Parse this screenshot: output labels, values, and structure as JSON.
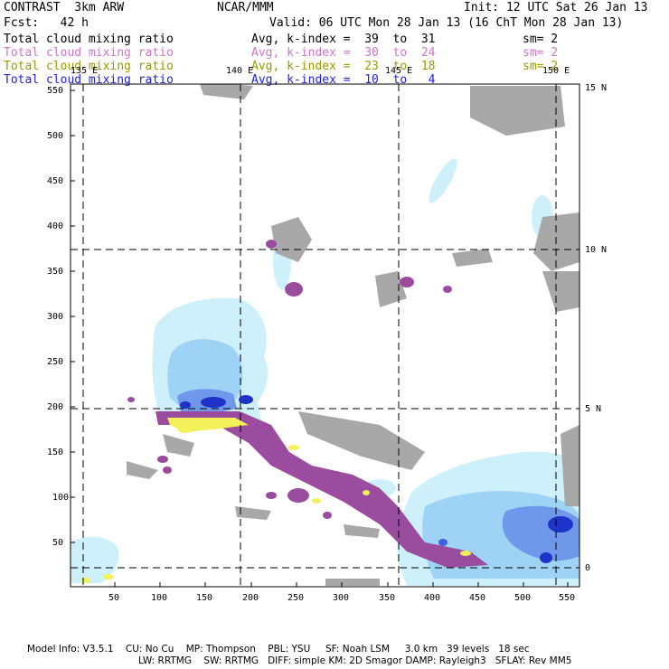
{
  "header": {
    "model": "CONTRAST  3km ARW",
    "center": "NCAR/MMM",
    "init": "Init: 12 UTC Sat 26 Jan 13",
    "fcst": "Fcst:   42 h",
    "valid": "Valid: 06 UTC Mon 28 Jan 13 (16 ChT Mon 28 Jan 13)"
  },
  "fields": [
    {
      "name": "Total cloud mixing ratio",
      "avg": "Avg, k-index =  39  to  31",
      "sm": "sm= 2",
      "color": "#000000"
    },
    {
      "name": "Total cloud mixing ratio",
      "avg": "Avg, k-index =  30  to  24",
      "sm": "sm= 2",
      "color": "#cc77cc"
    },
    {
      "name": "Total cloud mixing ratio",
      "avg": "Avg, k-index =  23  to  18",
      "sm": "sm= 2",
      "color": "#999900"
    },
    {
      "name": "Total cloud mixing ratio",
      "avg": "Avg, k-index =  10  to   4",
      "sm": "",
      "color": "#2222dd"
    }
  ],
  "map": {
    "lon_labels": [
      "135 E",
      "140 E",
      "145 E",
      "150 E"
    ],
    "lat_labels": [
      "15 N",
      "10 N",
      "5 N",
      "0"
    ],
    "x_ticks": [
      "50",
      "100",
      "150",
      "200",
      "250",
      "300",
      "350",
      "400",
      "450",
      "500",
      "550"
    ],
    "y_ticks": [
      "550",
      "500",
      "450",
      "400",
      "350",
      "300",
      "250",
      "200",
      "150",
      "100",
      "50"
    ],
    "colors": {
      "gray": "#a8a8a8",
      "light_blue": "#cdf0fb",
      "mid_blue": "#9fd3f5",
      "blue": "#6f97ea",
      "dark_blue": "#1f33c8",
      "purple": "#9a4c9e",
      "yellow": "#f4f05a"
    }
  },
  "footer": {
    "line1": "Model Info: V3.5.1    CU: No Cu    MP: Thompson    PBL: YSU     SF: Noah LSM     3.0 km   39 levels   18 sec",
    "line2": "LW: RRTMG    SW: RRTMG   DIFF: simple KM: 2D Smagor DAMP: Rayleigh3   SFLAY: Rev MM5"
  }
}
